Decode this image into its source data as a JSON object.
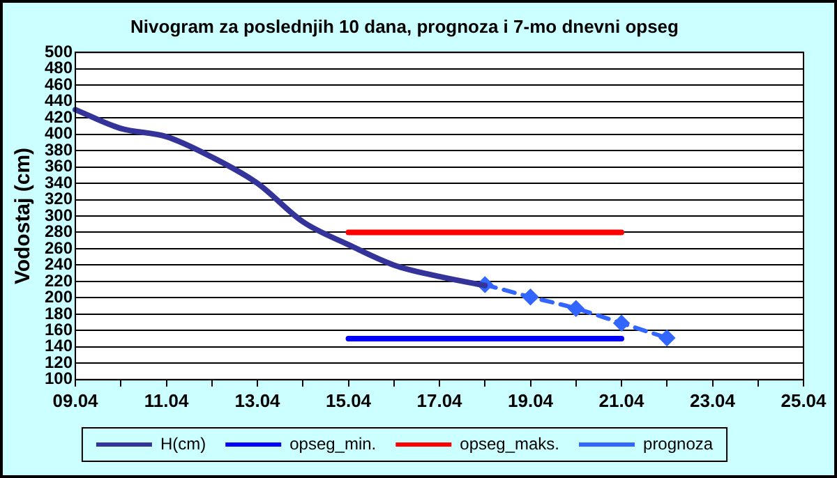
{
  "chart_data": {
    "type": "line",
    "title": "Nivogram za poslednjih 10 dana, prognoza i 7-mo dnevni opseg",
    "ylabel": "Vodostaj (cm)",
    "categories": [
      "09.04",
      null,
      "11.04",
      null,
      "13.04",
      null,
      "15.04",
      null,
      "17.04",
      null,
      "19.04",
      null,
      "21.04",
      null,
      "23.04",
      null,
      "25.04"
    ],
    "ylim": [
      100,
      500
    ],
    "yticks": [
      100,
      120,
      140,
      160,
      180,
      200,
      220,
      240,
      260,
      280,
      300,
      320,
      340,
      360,
      380,
      400,
      420,
      440,
      460,
      480,
      500
    ],
    "grid": "y",
    "legend": "bottom",
    "series": [
      {
        "name": "H(cm)",
        "color": "#333399",
        "marker": "none",
        "line_style": "solid",
        "values": [
          430,
          407,
          397,
          372,
          340,
          293,
          265,
          240,
          226,
          215,
          null,
          null,
          null,
          null,
          null,
          null,
          null
        ]
      },
      {
        "name": "opseg_min.",
        "color": "#0000ff",
        "marker": "none",
        "line_style": "solid",
        "values": [
          null,
          null,
          null,
          null,
          null,
          null,
          150,
          150,
          150,
          150,
          150,
          150,
          150,
          null,
          null,
          null,
          null
        ]
      },
      {
        "name": "opseg_maks.",
        "color": "#ff0000",
        "marker": "none",
        "line_style": "solid",
        "values": [
          null,
          null,
          null,
          null,
          null,
          null,
          280,
          280,
          280,
          280,
          280,
          280,
          280,
          null,
          null,
          null,
          null
        ]
      },
      {
        "name": "prognoza",
        "color": "#3366ff",
        "marker": "diamond",
        "line_style": "dashed",
        "values": [
          null,
          null,
          null,
          null,
          null,
          null,
          null,
          null,
          null,
          216,
          201,
          187,
          169,
          151,
          null,
          null,
          null
        ]
      }
    ]
  }
}
